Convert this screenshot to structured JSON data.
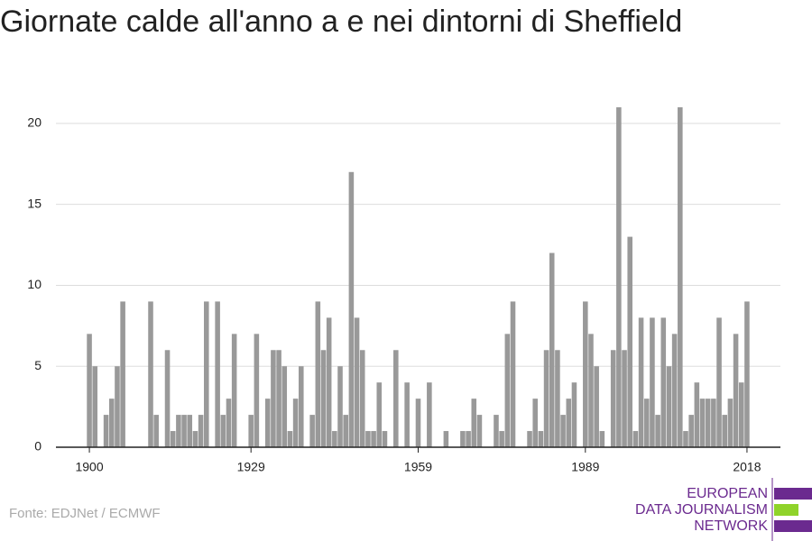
{
  "chart_data": {
    "type": "bar",
    "title": "Giornate calde all'anno a e nei dintorni di Sheffield",
    "source": "Fonte: EDJNet / ECMWF",
    "logo": [
      "EUROPEAN",
      "DATA JOURNALISM",
      "NETWORK"
    ],
    "color": "#999999",
    "x": [
      1900,
      1901,
      1902,
      1903,
      1904,
      1905,
      1906,
      1907,
      1908,
      1909,
      1910,
      1911,
      1912,
      1913,
      1914,
      1915,
      1916,
      1917,
      1918,
      1919,
      1920,
      1921,
      1922,
      1923,
      1924,
      1925,
      1926,
      1927,
      1928,
      1929,
      1930,
      1931,
      1932,
      1933,
      1934,
      1935,
      1936,
      1937,
      1938,
      1939,
      1940,
      1941,
      1942,
      1943,
      1944,
      1945,
      1946,
      1947,
      1948,
      1949,
      1950,
      1951,
      1952,
      1953,
      1954,
      1955,
      1956,
      1957,
      1958,
      1959,
      1960,
      1961,
      1962,
      1963,
      1964,
      1965,
      1966,
      1967,
      1968,
      1969,
      1970,
      1971,
      1972,
      1973,
      1974,
      1975,
      1976,
      1977,
      1978,
      1979,
      1980,
      1981,
      1982,
      1983,
      1984,
      1985,
      1986,
      1987,
      1988,
      1989,
      1990,
      1991,
      1992,
      1993,
      1994,
      1995,
      1996,
      1997,
      1998,
      1999,
      2000,
      2001,
      2002,
      2003,
      2004,
      2005,
      2006,
      2007,
      2008,
      2009,
      2010,
      2011,
      2012,
      2013,
      2014,
      2015,
      2016,
      2017,
      2018
    ],
    "values": [
      7,
      5,
      0,
      2,
      3,
      5,
      9,
      0,
      0,
      0,
      0,
      9,
      2,
      0,
      6,
      1,
      2,
      2,
      2,
      1,
      2,
      9,
      0,
      9,
      2,
      3,
      7,
      0,
      0,
      2,
      7,
      0,
      3,
      6,
      6,
      5,
      1,
      3,
      5,
      0,
      2,
      9,
      6,
      8,
      1,
      5,
      2,
      17,
      8,
      6,
      1,
      1,
      4,
      1,
      0,
      6,
      0,
      4,
      0,
      3,
      0,
      4,
      0,
      0,
      1,
      0,
      0,
      1,
      1,
      3,
      2,
      0,
      0,
      2,
      1,
      7,
      9,
      0,
      0,
      1,
      3,
      1,
      6,
      12,
      6,
      2,
      3,
      4,
      0,
      9,
      7,
      5,
      1,
      0,
      6,
      21,
      6,
      13,
      1,
      8,
      3,
      8,
      2,
      8,
      5,
      7,
      21,
      1,
      2,
      4,
      3,
      3,
      3,
      8,
      2,
      3,
      7,
      4,
      9
    ],
    "xlim": [
      1894,
      2024
    ],
    "xticks": [
      1900,
      1929,
      1959,
      1989,
      2018
    ],
    "ylim": [
      0,
      22
    ],
    "yticks": [
      0,
      5,
      10,
      15,
      20
    ],
    "grid": true
  }
}
